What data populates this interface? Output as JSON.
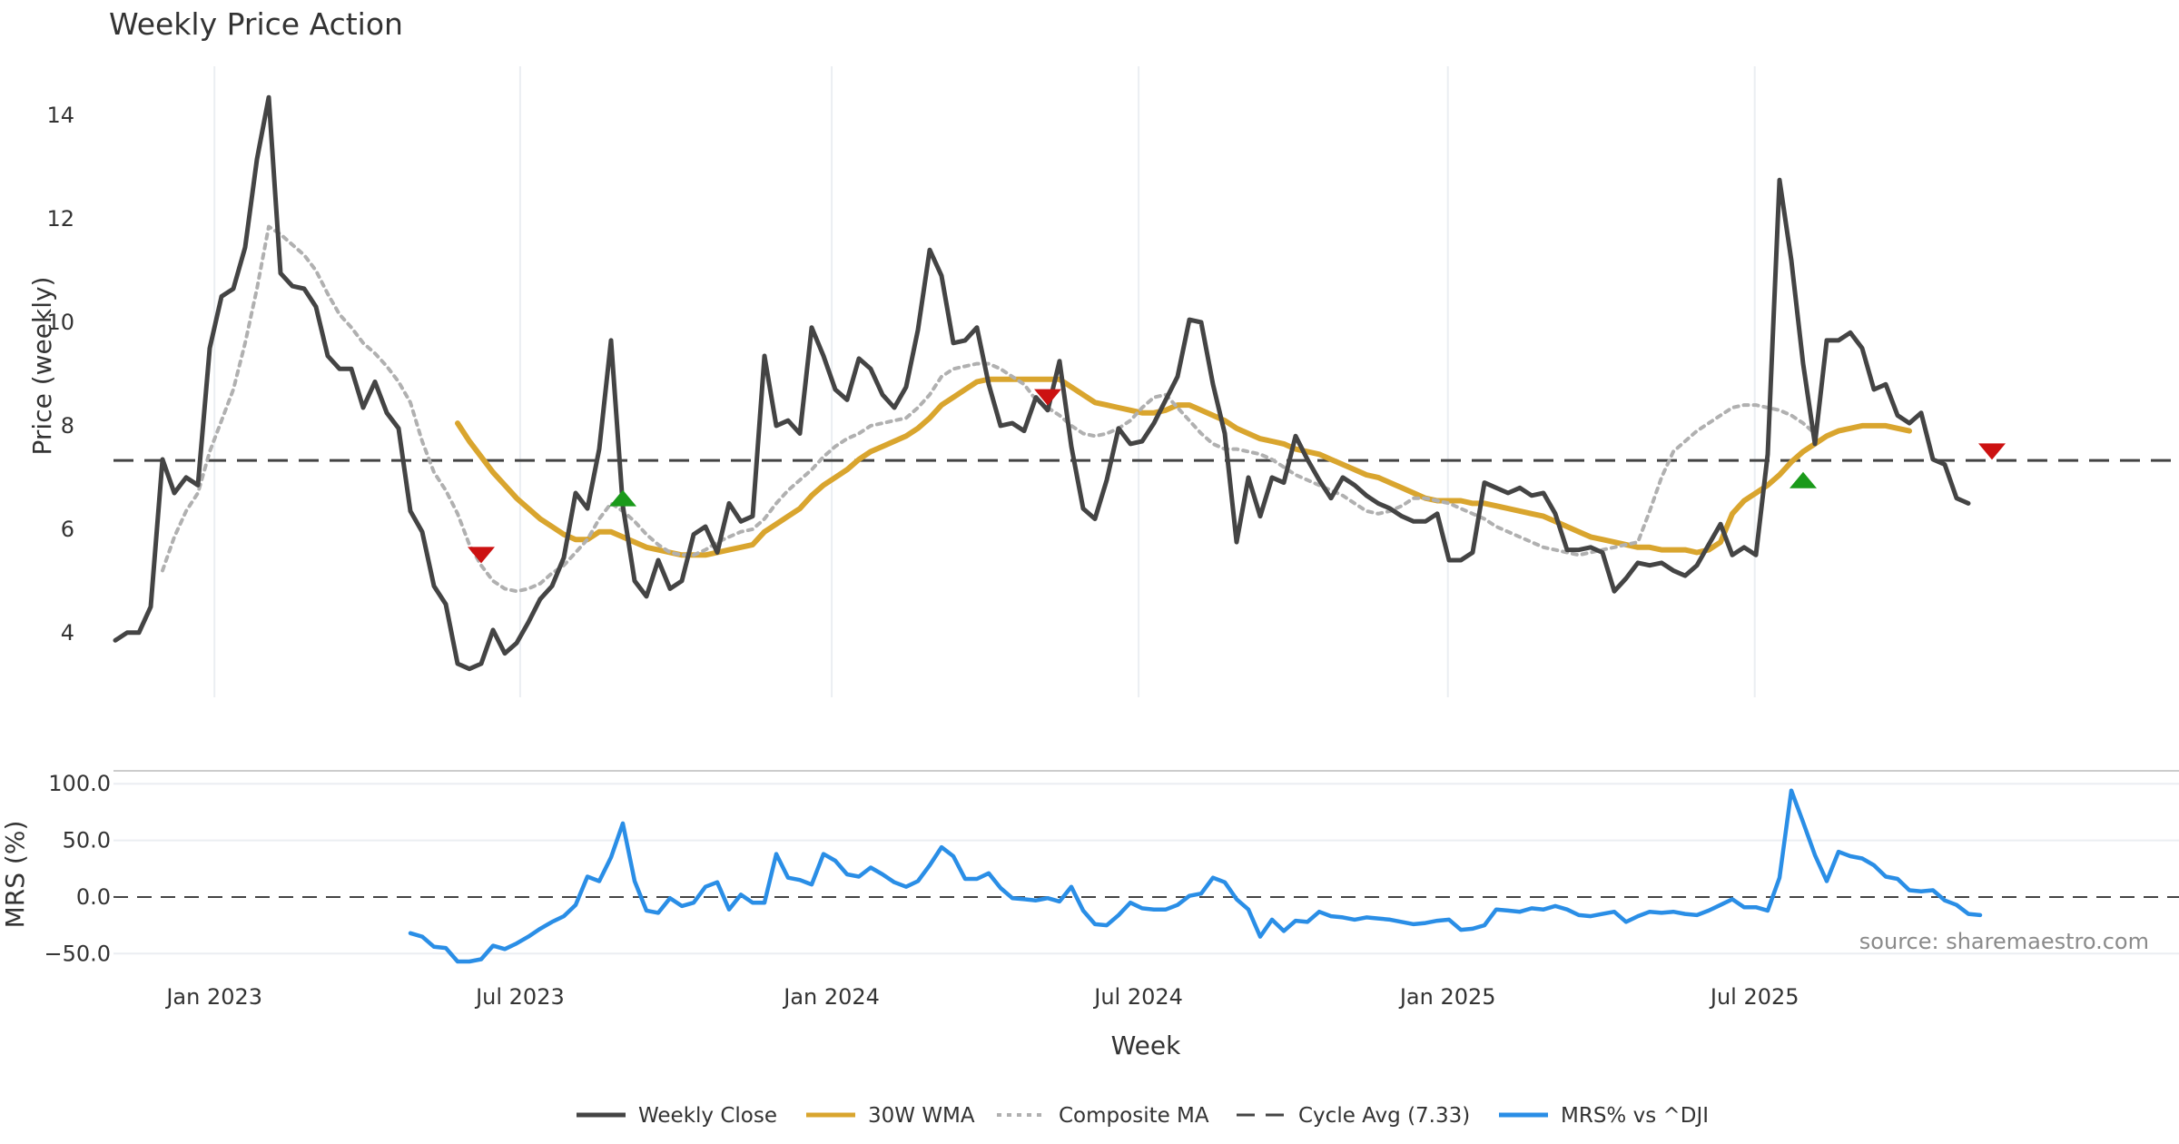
{
  "chart_data": [
    {
      "type": "line",
      "title": "Weekly Price Action",
      "xlabel": "Week",
      "ylabel": "Price (weekly)",
      "ylim": [
        2.75,
        14.95
      ],
      "yticks": [
        4,
        6,
        8,
        10,
        12,
        14
      ],
      "grid": true,
      "cycle_avg": 7.33,
      "x_start_week": 0,
      "series": [
        {
          "name": "Weekly Close",
          "color": "#444444",
          "start": 0,
          "values": [
            3.85,
            4.0,
            4.0,
            4.5,
            7.35,
            6.7,
            7.0,
            6.85,
            9.5,
            10.5,
            10.65,
            11.45,
            13.15,
            14.35,
            10.95,
            10.7,
            10.65,
            10.3,
            9.35,
            9.1,
            9.1,
            8.35,
            8.85,
            8.25,
            7.95,
            6.35,
            5.95,
            4.9,
            4.55,
            3.4,
            3.3,
            3.4,
            4.05,
            3.6,
            3.8,
            4.2,
            4.65,
            4.9,
            5.45,
            6.7,
            6.4,
            7.55,
            9.65,
            6.45,
            5.0,
            4.7,
            5.4,
            4.85,
            5.0,
            5.9,
            6.05,
            5.55,
            6.5,
            6.15,
            6.25,
            9.35,
            8.0,
            8.1,
            7.85,
            9.9,
            9.35,
            8.7,
            8.5,
            9.3,
            9.1,
            8.6,
            8.35,
            8.75,
            9.85,
            11.4,
            10.9,
            9.6,
            9.65,
            9.9,
            8.8,
            8.0,
            8.05,
            7.9,
            8.55,
            8.3,
            9.25,
            7.6,
            6.4,
            6.2,
            6.95,
            7.95,
            7.65,
            7.7,
            8.05,
            8.5,
            8.95,
            10.05,
            10.0,
            8.8,
            7.85,
            5.75,
            7.0,
            6.25,
            7.0,
            6.9,
            7.8,
            7.35,
            6.95,
            6.6,
            7.0,
            6.85,
            6.65,
            6.5,
            6.4,
            6.25,
            6.15,
            6.15,
            6.3,
            5.4,
            5.4,
            5.55,
            6.9,
            6.8,
            6.7,
            6.8,
            6.65,
            6.7,
            6.3,
            5.6,
            5.6,
            5.65,
            5.55,
            4.8,
            5.05,
            5.35,
            5.3,
            5.35,
            5.2,
            5.1,
            5.3,
            5.7,
            6.1,
            5.5,
            5.65,
            5.5,
            7.45,
            12.75,
            11.2,
            9.2,
            7.65,
            9.65,
            9.65,
            9.8,
            9.5,
            8.7,
            8.8,
            8.2,
            8.05,
            8.25,
            7.35,
            7.25,
            6.6,
            6.5
          ]
        },
        {
          "name": "30W WMA",
          "color": "#d9a52e",
          "start": 29,
          "values": [
            8.05,
            7.7,
            7.4,
            7.1,
            6.85,
            6.6,
            6.4,
            6.2,
            6.05,
            5.9,
            5.8,
            5.8,
            5.95,
            5.95,
            5.85,
            5.75,
            5.65,
            5.6,
            5.55,
            5.5,
            5.5,
            5.5,
            5.55,
            5.6,
            5.65,
            5.7,
            5.95,
            6.1,
            6.25,
            6.4,
            6.65,
            6.85,
            7.0,
            7.15,
            7.35,
            7.5,
            7.6,
            7.7,
            7.8,
            7.95,
            8.15,
            8.4,
            8.55,
            8.7,
            8.85,
            8.9,
            8.9,
            8.9,
            8.9,
            8.9,
            8.9,
            8.9,
            8.75,
            8.6,
            8.45,
            8.4,
            8.35,
            8.3,
            8.25,
            8.25,
            8.3,
            8.4,
            8.4,
            8.3,
            8.2,
            8.1,
            7.95,
            7.85,
            7.75,
            7.7,
            7.65,
            7.55,
            7.5,
            7.45,
            7.35,
            7.25,
            7.15,
            7.05,
            7.0,
            6.9,
            6.8,
            6.7,
            6.6,
            6.55,
            6.55,
            6.55,
            6.5,
            6.5,
            6.45,
            6.4,
            6.35,
            6.3,
            6.25,
            6.15,
            6.05,
            5.95,
            5.85,
            5.8,
            5.75,
            5.7,
            5.65,
            5.65,
            5.6,
            5.6,
            5.6,
            5.55,
            5.6,
            5.75,
            6.3,
            6.55,
            6.7,
            6.85,
            7.05,
            7.3,
            7.5,
            7.65,
            7.8,
            7.9,
            7.95,
            8.0,
            8.0,
            8.0,
            7.95,
            7.9
          ]
        },
        {
          "name": "Composite MA",
          "color": "#b0b0b0",
          "start": 4,
          "values": [
            5.2,
            5.85,
            6.35,
            6.7,
            7.5,
            8.1,
            8.7,
            9.6,
            10.65,
            11.85,
            11.7,
            11.5,
            11.3,
            11.0,
            10.55,
            10.15,
            9.9,
            9.6,
            9.4,
            9.15,
            8.85,
            8.45,
            7.7,
            7.1,
            6.75,
            6.3,
            5.7,
            5.3,
            5.0,
            4.85,
            4.8,
            4.85,
            4.95,
            5.15,
            5.3,
            5.55,
            5.8,
            6.2,
            6.5,
            6.35,
            6.15,
            5.9,
            5.7,
            5.55,
            5.5,
            5.5,
            5.6,
            5.75,
            5.85,
            5.95,
            6.0,
            6.2,
            6.5,
            6.75,
            6.95,
            7.15,
            7.4,
            7.6,
            7.75,
            7.85,
            8.0,
            8.05,
            8.1,
            8.15,
            8.35,
            8.6,
            8.95,
            9.1,
            9.15,
            9.2,
            9.2,
            9.1,
            8.95,
            8.8,
            8.5,
            8.35,
            8.2,
            8.0,
            7.85,
            7.8,
            7.85,
            7.95,
            8.1,
            8.35,
            8.55,
            8.6,
            8.35,
            8.1,
            7.85,
            7.65,
            7.55,
            7.55,
            7.5,
            7.45,
            7.35,
            7.2,
            7.05,
            6.95,
            6.85,
            6.75,
            6.65,
            6.5,
            6.35,
            6.3,
            6.35,
            6.45,
            6.6,
            6.6,
            6.55,
            6.5,
            6.4,
            6.3,
            6.2,
            6.05,
            5.95,
            5.85,
            5.75,
            5.65,
            5.6,
            5.55,
            5.5,
            5.55,
            5.6,
            5.65,
            5.7,
            5.75,
            6.35,
            7.0,
            7.5,
            7.7,
            7.9,
            8.05,
            8.2,
            8.35,
            8.4,
            8.4,
            8.35,
            8.3,
            8.2,
            8.05,
            7.85
          ]
        },
        {
          "name": "Cycle Avg (7.33)",
          "color": "#444444",
          "constant": 7.33
        }
      ],
      "signals": [
        {
          "type": "sell",
          "week": 31,
          "value": 5.5
        },
        {
          "type": "buy",
          "week": 43,
          "value": 6.6
        },
        {
          "type": "sell",
          "week": 79,
          "value": 8.55
        },
        {
          "type": "buy",
          "week": 143,
          "value": 6.95
        },
        {
          "type": "sell",
          "week": 159,
          "value": 7.5
        }
      ]
    },
    {
      "type": "line",
      "xlabel": "Week",
      "ylabel": "MRS (%)",
      "ylim": [
        -65,
        105
      ],
      "yticks": [
        100,
        50,
        0,
        -50
      ],
      "ytick_labels": [
        "100.0",
        "50.0",
        "0.0",
        "−50.0"
      ],
      "series": [
        {
          "name": "MRS% vs ^DJI",
          "color": "#2a8ee6",
          "start": 25,
          "values": [
            -32,
            -35,
            -44,
            -45,
            -57,
            -57,
            -55,
            -43,
            -46,
            -41,
            -35,
            -28,
            -22,
            -17,
            -7,
            18,
            14,
            35,
            65,
            14,
            -12,
            -14,
            -1,
            -8,
            -5,
            9,
            13,
            -11,
            2,
            -5,
            -5,
            38,
            17,
            15,
            11,
            38,
            32,
            20,
            18,
            26,
            20,
            13,
            9,
            14,
            28,
            44,
            36,
            16,
            16,
            21,
            8,
            -1,
            -2,
            -3,
            -1,
            -4,
            9,
            -12,
            -24,
            -25,
            -16,
            -5,
            -10,
            -11,
            -11,
            -7,
            1,
            3,
            17,
            13,
            -2,
            -11,
            -35,
            -20,
            -30,
            -21,
            -22,
            -13,
            -17,
            -18,
            -20,
            -18,
            -19,
            -20,
            -22,
            -24,
            -23,
            -21,
            -20,
            -29,
            -28,
            -25,
            -11,
            -12,
            -13,
            -10,
            -11,
            -8,
            -11,
            -16,
            -17,
            -15,
            -13,
            -22,
            -17,
            -13,
            -14,
            -13,
            -15,
            -16,
            -12,
            -7,
            -2,
            -9,
            -9,
            -12,
            17,
            94,
            66,
            37,
            14,
            40,
            36,
            34,
            28,
            18,
            16,
            6,
            5,
            6,
            -3,
            -7,
            -15,
            -16
          ]
        }
      ],
      "annotation": "source: sharemaestro.com"
    }
  ],
  "x_axis": {
    "label": "Week",
    "ticks": [
      {
        "label": "Jan 2023",
        "week": 8.4
      },
      {
        "label": "Jul 2023",
        "week": 34.3
      },
      {
        "label": "Jan 2024",
        "week": 60.7
      },
      {
        "label": "Jul 2024",
        "week": 86.7
      },
      {
        "label": "Jan 2025",
        "week": 112.9
      },
      {
        "label": "Jul 2025",
        "week": 138.9
      }
    ]
  },
  "legend": {
    "placement": "bottom",
    "items": [
      {
        "label": "Weekly Close",
        "color": "#444444",
        "style": "solid"
      },
      {
        "label": "30W WMA",
        "color": "#d9a52e",
        "style": "solid"
      },
      {
        "label": "Composite MA",
        "color": "#b0b0b0",
        "style": "dotted"
      },
      {
        "label": "Cycle Avg (7.33)",
        "color": "#444444",
        "style": "dashed"
      },
      {
        "label": "MRS% vs ^DJI",
        "color": "#2a8ee6",
        "style": "solid"
      }
    ]
  },
  "colors": {
    "buy": "#1a9a1a",
    "sell": "#cc1111",
    "grid": "#ebeef2",
    "zero_line": "#444444"
  }
}
